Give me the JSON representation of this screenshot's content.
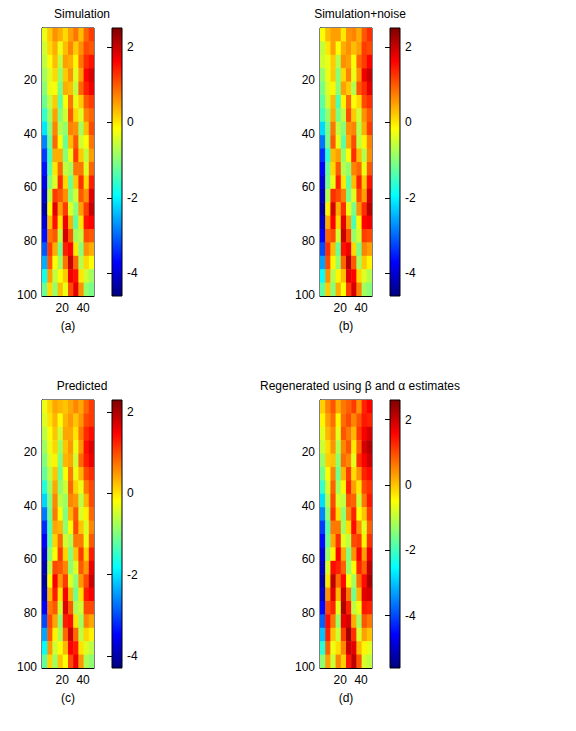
{
  "chart_data": [
    {
      "type": "heatmap",
      "title": "Simulation",
      "caption": "(a)",
      "x": [
        3,
        8,
        13,
        18,
        23,
        28,
        33,
        38,
        43,
        48
      ],
      "y": [
        3,
        8,
        13,
        18,
        23,
        28,
        33,
        38,
        43,
        48,
        53,
        58,
        63,
        68,
        73,
        78,
        83,
        88,
        93,
        98
      ],
      "xlim": [
        0.5,
        50.5
      ],
      "ylim": [
        0.5,
        100.5
      ],
      "xticks": [
        20,
        40
      ],
      "yticks": [
        20,
        40,
        60,
        80,
        100
      ],
      "clim": [
        -4.6,
        2.5
      ],
      "cticks": [
        -4,
        -2,
        0,
        2
      ],
      "values": [
        [
          -0.3,
          0.2,
          0.6,
          0.4,
          0.1,
          0.5,
          0.8,
          0.3,
          0.9,
          1.2
        ],
        [
          -0.5,
          0.1,
          0.4,
          -0.3,
          0.3,
          0.7,
          0.2,
          0.6,
          1.1,
          1.0
        ],
        [
          -0.6,
          -0.2,
          0.3,
          -0.6,
          0.5,
          0.4,
          -0.1,
          0.8,
          1.3,
          1.5
        ],
        [
          -0.8,
          -0.4,
          0.1,
          -0.9,
          0.2,
          0.6,
          -0.4,
          0.5,
          1.6,
          1.9
        ],
        [
          -1.0,
          -0.3,
          -0.2,
          -1.1,
          0.4,
          0.3,
          -0.6,
          0.9,
          1.4,
          1.7
        ],
        [
          -1.2,
          -0.6,
          0.2,
          -1.3,
          -0.2,
          0.8,
          -0.3,
          0.2,
          1.0,
          1.2
        ],
        [
          -1.6,
          -0.8,
          0.5,
          -1.0,
          -0.5,
          1.0,
          0.1,
          -0.4,
          0.7,
          0.9
        ],
        [
          -2.1,
          -1.0,
          0.7,
          -0.7,
          -0.9,
          0.7,
          0.6,
          -0.8,
          0.3,
          1.1
        ],
        [
          -2.8,
          -1.2,
          0.9,
          -0.2,
          -1.2,
          0.3,
          1.0,
          -0.5,
          -0.2,
          0.8
        ],
        [
          -3.3,
          -1.5,
          0.4,
          0.4,
          -1.0,
          -0.3,
          1.2,
          0.2,
          -0.6,
          0.5
        ],
        [
          -3.6,
          -1.3,
          0.0,
          0.9,
          -0.6,
          -0.8,
          0.8,
          0.8,
          -0.4,
          0.9
        ],
        [
          -3.9,
          -1.0,
          -0.4,
          1.3,
          0.1,
          -1.2,
          0.2,
          1.3,
          0.1,
          1.4
        ],
        [
          -4.1,
          -0.6,
          1.2,
          1.0,
          0.6,
          -1.0,
          -0.5,
          1.0,
          0.6,
          1.8
        ],
        [
          -4.3,
          -0.2,
          1.8,
          0.5,
          1.2,
          -0.4,
          -1.0,
          0.5,
          1.2,
          2.0
        ],
        [
          -4.0,
          0.3,
          1.5,
          0.0,
          1.7,
          0.4,
          -1.3,
          0.0,
          1.5,
          1.6
        ],
        [
          -3.6,
          0.8,
          1.0,
          -0.6,
          1.9,
          1.0,
          -0.8,
          -0.6,
          1.1,
          1.0
        ],
        [
          -3.1,
          1.2,
          0.4,
          -1.1,
          1.4,
          1.6,
          0.0,
          -1.0,
          0.6,
          0.4
        ],
        [
          -2.5,
          1.0,
          -0.2,
          -0.8,
          0.8,
          2.0,
          0.9,
          -0.7,
          0.1,
          -0.2
        ],
        [
          -1.8,
          0.5,
          -0.6,
          -0.2,
          0.2,
          1.7,
          1.5,
          0.0,
          -0.5,
          -0.8
        ],
        [
          -1.2,
          0.1,
          -0.9,
          0.3,
          -0.3,
          1.1,
          1.8,
          0.6,
          -0.9,
          -1.1
        ]
      ]
    },
    {
      "type": "heatmap",
      "title": "Simulation+noise",
      "caption": "(b)",
      "x": [
        3,
        8,
        13,
        18,
        23,
        28,
        33,
        38,
        43,
        48
      ],
      "y": [
        3,
        8,
        13,
        18,
        23,
        28,
        33,
        38,
        43,
        48,
        53,
        58,
        63,
        68,
        73,
        78,
        83,
        88,
        93,
        98
      ],
      "xlim": [
        0.5,
        50.5
      ],
      "ylim": [
        0.5,
        100.5
      ],
      "xticks": [
        20,
        40
      ],
      "yticks": [
        20,
        40,
        60,
        80,
        100
      ],
      "clim": [
        -4.6,
        2.5
      ],
      "cticks": [
        -4,
        -2,
        0,
        2
      ],
      "values": [
        [
          -0.2,
          0.3,
          0.5,
          0.5,
          0.0,
          0.6,
          0.7,
          0.4,
          1.0,
          1.3
        ],
        [
          -0.6,
          0.0,
          0.5,
          -0.2,
          0.4,
          0.6,
          0.3,
          0.5,
          1.2,
          1.1
        ],
        [
          -0.5,
          -0.3,
          0.2,
          -0.7,
          0.6,
          0.5,
          -0.2,
          0.9,
          1.2,
          1.6
        ],
        [
          -0.9,
          -0.3,
          0.2,
          -1.0,
          0.1,
          0.7,
          -0.3,
          0.6,
          1.7,
          2.0
        ],
        [
          -1.1,
          -0.4,
          -0.1,
          -1.0,
          0.5,
          0.2,
          -0.7,
          1.0,
          1.3,
          1.8
        ],
        [
          -1.3,
          -0.5,
          0.3,
          -1.4,
          -0.1,
          0.9,
          -0.2,
          0.1,
          1.1,
          1.3
        ],
        [
          -1.5,
          -0.9,
          0.4,
          -1.1,
          -0.6,
          1.1,
          0.2,
          -0.5,
          0.6,
          1.0
        ],
        [
          -2.2,
          -1.1,
          0.8,
          -0.6,
          -1.0,
          0.6,
          0.7,
          -0.7,
          0.4,
          1.2
        ],
        [
          -2.9,
          -1.1,
          1.0,
          -0.3,
          -1.3,
          0.4,
          1.1,
          -0.6,
          -0.1,
          0.7
        ],
        [
          -3.4,
          -1.6,
          0.3,
          0.5,
          -0.9,
          -0.2,
          1.3,
          0.3,
          -0.7,
          0.6
        ],
        [
          -3.7,
          -1.2,
          0.1,
          1.0,
          -0.7,
          -0.9,
          0.7,
          0.9,
          -0.3,
          1.0
        ],
        [
          -4.0,
          -1.1,
          -0.3,
          1.4,
          0.0,
          -1.3,
          0.3,
          1.4,
          0.2,
          1.5
        ],
        [
          -4.2,
          -0.7,
          1.3,
          1.1,
          0.7,
          -1.1,
          -0.4,
          1.1,
          0.5,
          1.9
        ],
        [
          -4.4,
          -0.1,
          1.9,
          0.4,
          1.3,
          -0.3,
          -1.1,
          0.6,
          1.3,
          2.1
        ],
        [
          -4.1,
          0.4,
          1.6,
          0.1,
          1.8,
          0.5,
          -1.4,
          -0.1,
          1.6,
          1.7
        ],
        [
          -3.7,
          0.9,
          1.1,
          -0.5,
          2.0,
          1.1,
          -0.9,
          -0.5,
          1.2,
          1.1
        ],
        [
          -3.2,
          1.3,
          0.3,
          -1.2,
          1.5,
          1.7,
          0.1,
          -1.1,
          0.7,
          0.5
        ],
        [
          -2.6,
          1.1,
          -0.1,
          -0.9,
          0.9,
          2.1,
          1.0,
          -0.8,
          0.2,
          -0.1
        ],
        [
          -1.9,
          0.6,
          -0.7,
          -0.1,
          0.3,
          1.8,
          1.6,
          0.1,
          -0.4,
          -0.7
        ],
        [
          -1.3,
          0.2,
          -1.0,
          0.4,
          -0.2,
          1.2,
          1.9,
          0.7,
          -0.8,
          -1.0
        ]
      ]
    },
    {
      "type": "heatmap",
      "title": "Predicted",
      "caption": "(c)",
      "x": [
        3,
        8,
        13,
        18,
        23,
        28,
        33,
        38,
        43,
        48
      ],
      "y": [
        3,
        8,
        13,
        18,
        23,
        28,
        33,
        38,
        43,
        48,
        53,
        58,
        63,
        68,
        73,
        78,
        83,
        88,
        93,
        98
      ],
      "xlim": [
        0.5,
        50.5
      ],
      "ylim": [
        0.5,
        100.5
      ],
      "xticks": [
        20,
        40
      ],
      "yticks": [
        20,
        40,
        60,
        80,
        100
      ],
      "clim": [
        -4.3,
        2.3
      ],
      "cticks": [
        -4,
        -2,
        0,
        2
      ],
      "values": [
        [
          -0.3,
          0.1,
          0.4,
          0.3,
          0.2,
          0.4,
          0.6,
          0.4,
          0.8,
          1.1
        ],
        [
          -0.4,
          0.0,
          0.3,
          -0.2,
          0.3,
          0.5,
          0.2,
          0.5,
          1.0,
          1.1
        ],
        [
          -0.6,
          -0.2,
          0.2,
          -0.5,
          0.4,
          0.4,
          0.0,
          0.7,
          1.2,
          1.4
        ],
        [
          -0.8,
          -0.3,
          0.1,
          -0.8,
          0.2,
          0.5,
          -0.3,
          0.5,
          1.4,
          1.7
        ],
        [
          -1.0,
          -0.4,
          -0.1,
          -1.0,
          0.3,
          0.4,
          -0.5,
          0.8,
          1.3,
          1.6
        ],
        [
          -1.2,
          -0.6,
          0.2,
          -1.1,
          -0.2,
          0.7,
          -0.3,
          0.3,
          1.0,
          1.2
        ],
        [
          -1.6,
          -0.8,
          0.4,
          -0.9,
          -0.5,
          0.8,
          0.1,
          -0.3,
          0.7,
          1.0
        ],
        [
          -2.1,
          -1.0,
          0.6,
          -0.6,
          -0.8,
          0.6,
          0.5,
          -0.6,
          0.3,
          1.0
        ],
        [
          -2.7,
          -1.1,
          0.7,
          -0.2,
          -1.0,
          0.3,
          0.9,
          -0.4,
          -0.1,
          0.8
        ],
        [
          -3.2,
          -1.3,
          0.4,
          0.3,
          -0.9,
          -0.2,
          1.0,
          0.2,
          -0.4,
          0.6
        ],
        [
          -3.5,
          -1.2,
          0.1,
          0.8,
          -0.5,
          -0.7,
          0.7,
          0.7,
          -0.3,
          0.9
        ],
        [
          -3.8,
          -0.9,
          -0.2,
          1.1,
          0.1,
          -1.0,
          0.2,
          1.1,
          0.1,
          1.3
        ],
        [
          -4.0,
          -0.6,
          1.0,
          0.9,
          0.6,
          -0.9,
          -0.4,
          0.9,
          0.5,
          1.6
        ],
        [
          -4.1,
          -0.2,
          1.5,
          0.5,
          1.1,
          -0.4,
          -0.9,
          0.5,
          1.0,
          1.8
        ],
        [
          -3.9,
          0.3,
          1.3,
          0.0,
          1.5,
          0.3,
          -1.1,
          0.0,
          1.3,
          1.5
        ],
        [
          -3.5,
          0.7,
          0.9,
          -0.5,
          1.7,
          0.9,
          -0.7,
          -0.5,
          1.0,
          1.0
        ],
        [
          -3.0,
          1.0,
          0.4,
          -0.9,
          1.3,
          1.4,
          0.0,
          -0.8,
          0.6,
          0.4
        ],
        [
          -2.4,
          0.9,
          -0.1,
          -0.7,
          0.8,
          1.8,
          0.8,
          -0.6,
          0.1,
          -0.1
        ],
        [
          -1.8,
          0.5,
          -0.5,
          -0.2,
          0.3,
          1.5,
          1.3,
          0.0,
          -0.4,
          -0.6
        ],
        [
          -1.2,
          0.1,
          -0.8,
          0.2,
          -0.2,
          1.0,
          1.6,
          0.5,
          -0.7,
          -0.9
        ]
      ]
    },
    {
      "type": "heatmap",
      "title": "Regenerated using β and α estimates",
      "caption": "(d)",
      "x": [
        3,
        8,
        13,
        18,
        23,
        28,
        33,
        38,
        43,
        48
      ],
      "y": [
        3,
        8,
        13,
        18,
        23,
        28,
        33,
        38,
        43,
        48,
        53,
        58,
        63,
        68,
        73,
        78,
        83,
        88,
        93,
        98
      ],
      "xlim": [
        0.5,
        50.5
      ],
      "ylim": [
        0.5,
        100.5
      ],
      "xticks": [
        20,
        40
      ],
      "yticks": [
        20,
        40,
        60,
        80,
        100
      ],
      "clim": [
        -5.6,
        2.6
      ],
      "cticks": [
        -4,
        -2,
        0,
        2
      ],
      "values": [
        [
          -0.1,
          0.5,
          0.9,
          0.2,
          0.6,
          0.8,
          1.1,
          0.4,
          1.3,
          1.6
        ],
        [
          -0.4,
          0.3,
          0.7,
          -0.4,
          0.7,
          1.0,
          0.5,
          0.9,
          1.4,
          1.3
        ],
        [
          -0.7,
          0.1,
          0.5,
          -0.7,
          0.9,
          0.6,
          0.1,
          1.1,
          1.6,
          1.9
        ],
        [
          -0.9,
          -0.2,
          0.4,
          -1.1,
          0.5,
          0.9,
          -0.3,
          0.8,
          1.9,
          2.2
        ],
        [
          -1.3,
          -0.1,
          0.0,
          -1.4,
          0.7,
          0.5,
          -0.7,
          1.2,
          1.6,
          2.0
        ],
        [
          -1.6,
          -0.5,
          0.5,
          -1.6,
          0.1,
          1.1,
          -0.2,
          0.4,
          1.3,
          1.5
        ],
        [
          -2.1,
          -0.8,
          0.8,
          -1.2,
          -0.4,
          1.3,
          0.3,
          -0.3,
          1.0,
          1.2
        ],
        [
          -2.8,
          -1.1,
          1.0,
          -0.8,
          -1.0,
          0.9,
          0.8,
          -0.9,
          0.6,
          1.4
        ],
        [
          -3.5,
          -1.4,
          1.2,
          -0.2,
          -1.4,
          0.5,
          1.3,
          -0.5,
          0.0,
          1.1
        ],
        [
          -4.1,
          -1.8,
          0.6,
          0.6,
          -1.2,
          -0.2,
          1.5,
          0.4,
          -0.7,
          0.8
        ],
        [
          -4.5,
          -1.6,
          0.2,
          1.2,
          -0.7,
          -1.0,
          1.0,
          1.1,
          -0.4,
          1.2
        ],
        [
          -4.9,
          -1.3,
          -0.4,
          1.6,
          0.2,
          -1.5,
          0.4,
          1.6,
          0.3,
          1.7
        ],
        [
          -5.1,
          -0.8,
          1.5,
          1.3,
          0.8,
          -1.3,
          -0.5,
          1.3,
          0.8,
          2.1
        ],
        [
          -5.3,
          -0.3,
          2.1,
          0.7,
          1.5,
          -0.5,
          -1.2,
          0.7,
          1.5,
          2.3
        ],
        [
          -5.0,
          0.4,
          1.8,
          0.1,
          2.0,
          0.6,
          -1.6,
          0.1,
          1.8,
          1.9
        ],
        [
          -4.5,
          1.0,
          1.3,
          -0.7,
          2.2,
          1.3,
          -1.0,
          -0.6,
          1.4,
          1.3
        ],
        [
          -3.8,
          1.5,
          0.6,
          -1.3,
          1.7,
          1.9,
          0.2,
          -1.2,
          0.9,
          0.6
        ],
        [
          -3.0,
          1.3,
          0.0,
          -0.9,
          1.1,
          2.3,
          1.2,
          -0.8,
          0.3,
          0.0
        ],
        [
          -2.2,
          0.8,
          -0.6,
          -0.2,
          0.5,
          2.0,
          1.8,
          0.1,
          -0.4,
          -0.7
        ],
        [
          -1.4,
          0.3,
          -0.9,
          0.5,
          -0.1,
          1.4,
          2.1,
          0.9,
          -0.8,
          -1.0
        ]
      ]
    }
  ]
}
